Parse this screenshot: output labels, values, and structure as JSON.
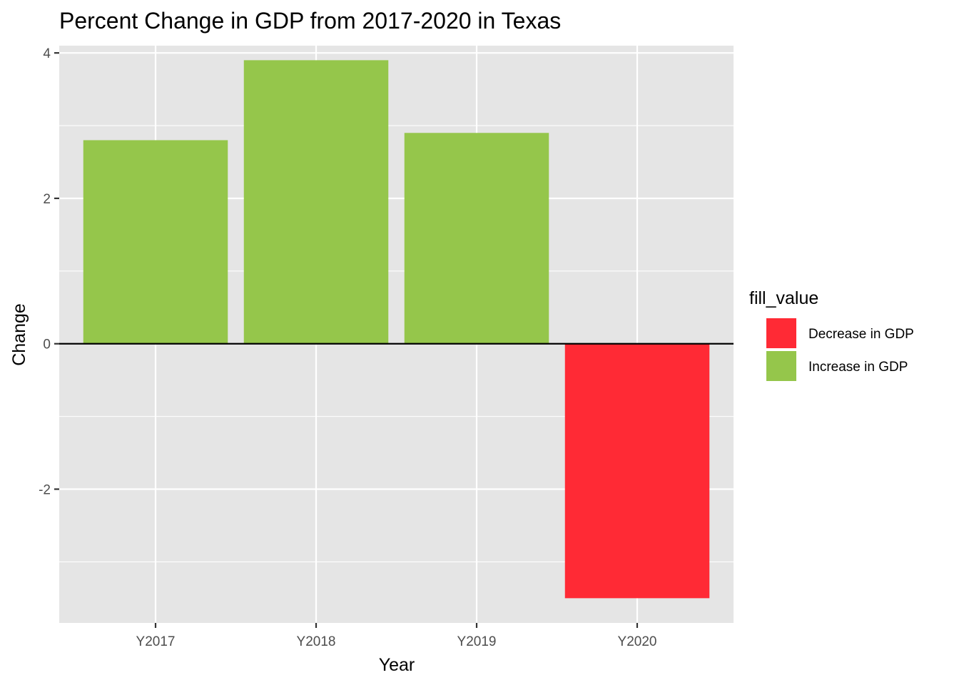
{
  "chart_data": {
    "type": "bar",
    "title": "Percent Change in GDP from 2017-2020 in Texas",
    "xlabel": "Year",
    "ylabel": "Change",
    "categories": [
      "Y2017",
      "Y2018",
      "Y2019",
      "Y2020"
    ],
    "values": [
      2.8,
      3.9,
      2.9,
      -3.5
    ],
    "fill_groups": [
      "Increase in GDP",
      "Increase in GDP",
      "Increase in GDP",
      "Decrease in GDP"
    ],
    "ylim": [
      -3.84,
      4.1
    ],
    "yticks": [
      -2,
      0,
      2,
      4
    ],
    "ytick_labels": [
      "-2",
      "0",
      "2",
      "4"
    ],
    "reference_line": 0,
    "grid": true,
    "legend": {
      "title": "fill_value",
      "placement": "right",
      "entries": [
        {
          "label": "Decrease in GDP",
          "color": "#ff2a35"
        },
        {
          "label": "Increase in GDP",
          "color": "#95c64b"
        }
      ]
    },
    "colors": {
      "panel_background": "#e5e5e5",
      "grid": "#ffffff",
      "reference_line": "#000000"
    }
  }
}
